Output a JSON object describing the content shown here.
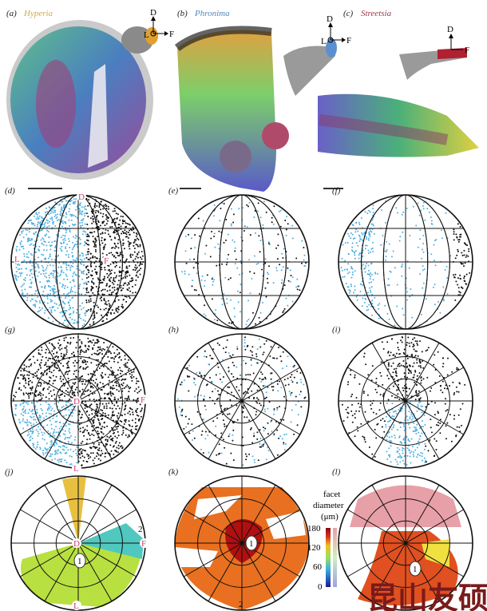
{
  "panels": {
    "a": {
      "letter": "(a)",
      "species": "Hyperia",
      "color": "#d9a93a"
    },
    "b": {
      "letter": "(b)",
      "species": "Phronima",
      "color": "#4f86c6"
    },
    "c": {
      "letter": "(c)",
      "species": "Streetsia",
      "color": "#9c3a4a"
    },
    "d": {
      "letter": "(d)"
    },
    "e": {
      "letter": "(e)"
    },
    "f": {
      "letter": "(f)"
    },
    "g": {
      "letter": "(g)"
    },
    "h": {
      "letter": "(h)"
    },
    "i": {
      "letter": "(i)"
    },
    "j": {
      "letter": "(j)"
    },
    "k": {
      "letter": "(k)"
    },
    "l": {
      "letter": "(l)"
    }
  },
  "axes": {
    "dorsal": "D",
    "lateral": "L",
    "frontal": "F"
  },
  "region_labels": {
    "one": "1",
    "two": "2"
  },
  "colorbar": {
    "title_1": "facet",
    "title_2": "diameter",
    "title_3": "(μm)",
    "ticks": [
      "180",
      "120",
      "60",
      "0"
    ]
  },
  "label_color": "#d63a7a",
  "watermark": "昆山友硕"
}
